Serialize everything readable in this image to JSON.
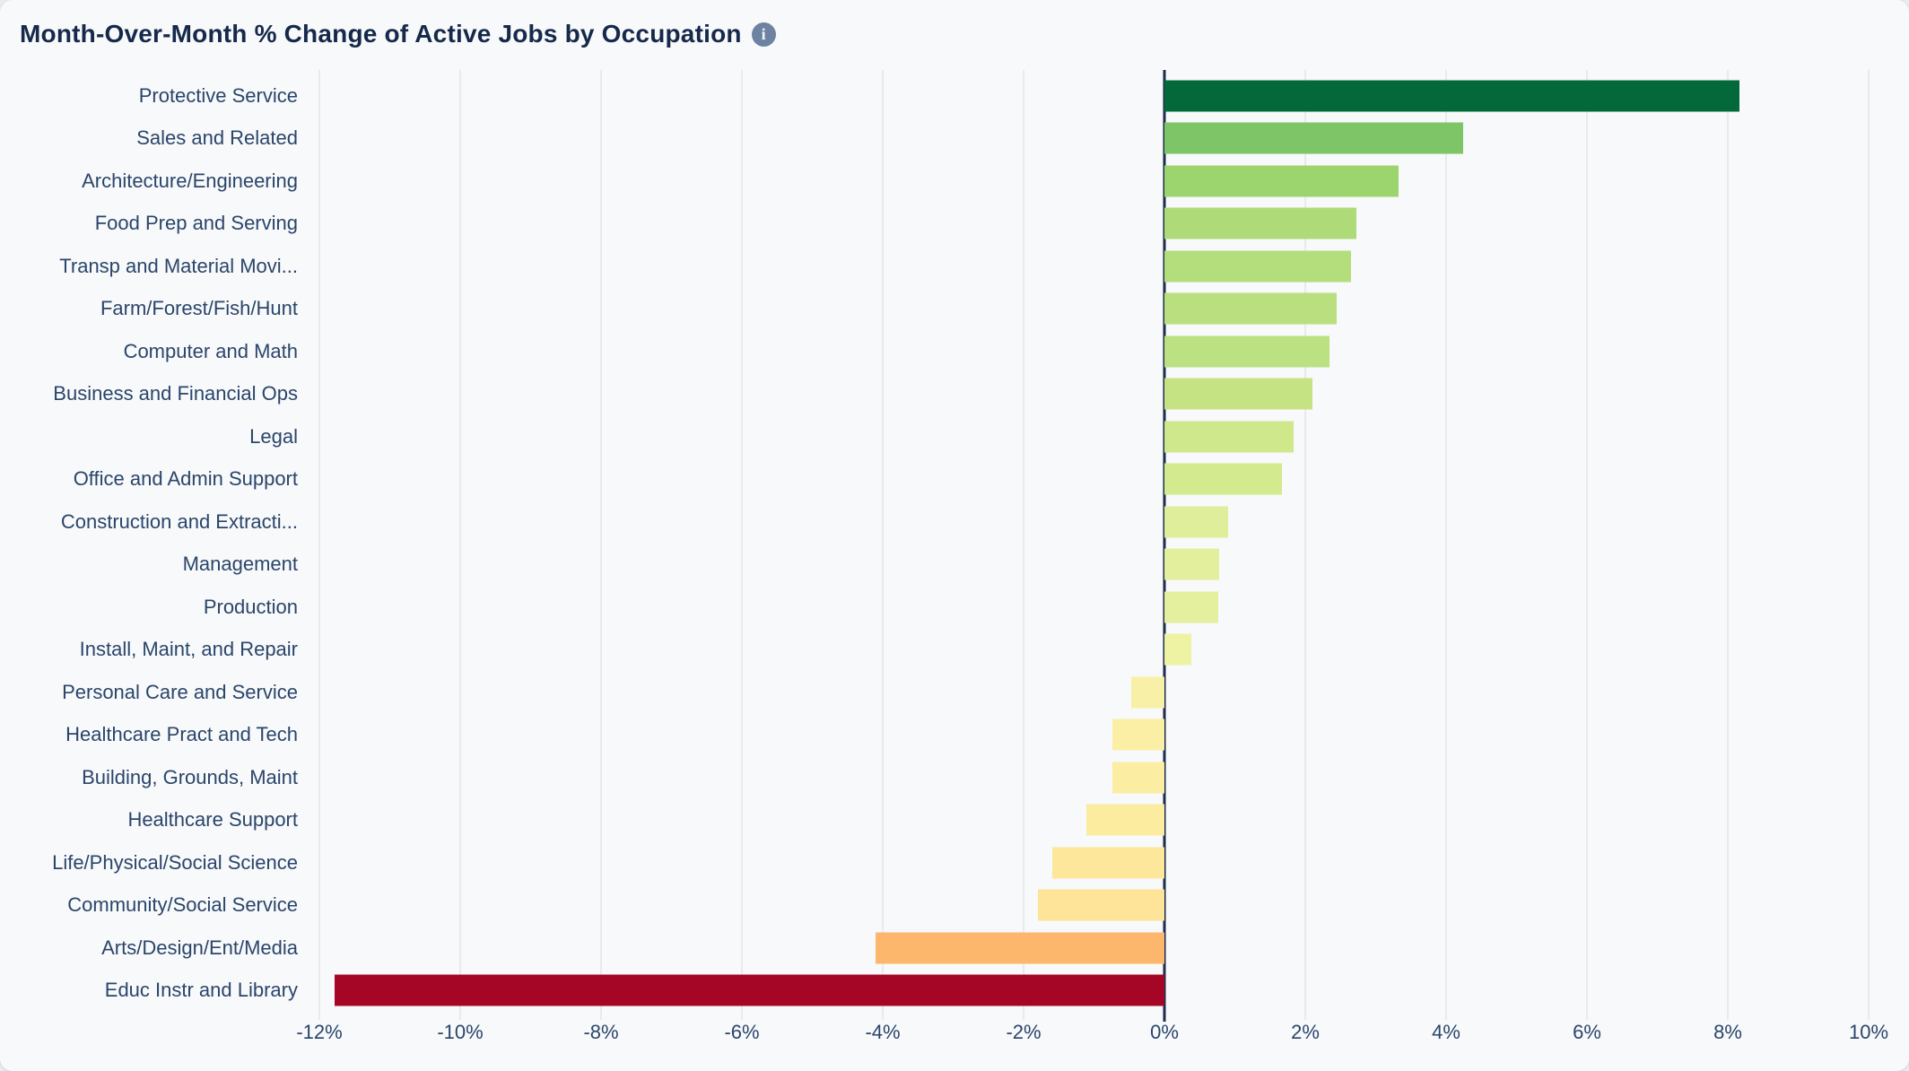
{
  "header": {
    "title": "Month-Over-Month % Change of Active Jobs by Occupation",
    "info_icon_glyph": "i"
  },
  "colors": {
    "card_background": "#f8f9fa",
    "title_text": "#16294b",
    "label_text": "#2a456b",
    "zero_axis": "#1d2c4e",
    "gridline": "#e9eaec",
    "info_icon_bg": "#6d83a1"
  },
  "chart_data": {
    "type": "bar",
    "orientation": "horizontal",
    "title": "Month-Over-Month % Change of Active Jobs by Occupation",
    "xlabel": "",
    "ylabel": "",
    "xlim": [
      -12,
      10
    ],
    "ticks": [
      -12,
      -10,
      -8,
      -6,
      -4,
      -2,
      0,
      2,
      4,
      6,
      8,
      10
    ],
    "tick_labels": [
      "-12%",
      "-10%",
      "-8%",
      "-6%",
      "-4%",
      "-2%",
      "0%",
      "2%",
      "4%",
      "6%",
      "8%",
      "10%"
    ],
    "grid": "vertical light gridlines at every 2% tick, dark vertical axis at 0%",
    "legend": "none",
    "categories": [
      "Protective Service",
      "Sales and Related",
      "Architecture/Engineering",
      "Food Prep and Serving",
      "Transp and Material Movi...",
      "Farm/Forest/Fish/Hunt",
      "Computer and Math",
      "Business and Financial Ops",
      "Legal",
      "Office and Admin Support",
      "Construction and Extracti...",
      "Management",
      "Production",
      "Install, Maint, and Repair",
      "Personal Care and Service",
      "Healthcare Pract and Tech",
      "Building, Grounds, Maint",
      "Healthcare Support",
      "Life/Physical/Social Science",
      "Community/Social Service",
      "Arts/Design/Ent/Media",
      "Educ Instr and Library"
    ],
    "values": [
      8.17,
      4.24,
      3.32,
      2.72,
      2.65,
      2.45,
      2.34,
      2.1,
      1.83,
      1.67,
      0.91,
      0.78,
      0.76,
      0.38,
      -0.47,
      -0.74,
      -0.74,
      -1.11,
      -1.59,
      -1.8,
      -4.1,
      -11.78
    ],
    "bar_colors": [
      "#04693a",
      "#7dc567",
      "#9cd46d",
      "#aeda77",
      "#b4dd7b",
      "#b9df7f",
      "#bce182",
      "#c6e383",
      "#cfe88c",
      "#d3ea8e",
      "#dfee9a",
      "#e3ef9c",
      "#e4f09d",
      "#eef3a4",
      "#f9f0a8",
      "#fbefa5",
      "#fbeea3",
      "#fcec9f",
      "#fde79b",
      "#fde498",
      "#fdb76c",
      "#a50626"
    ]
  }
}
